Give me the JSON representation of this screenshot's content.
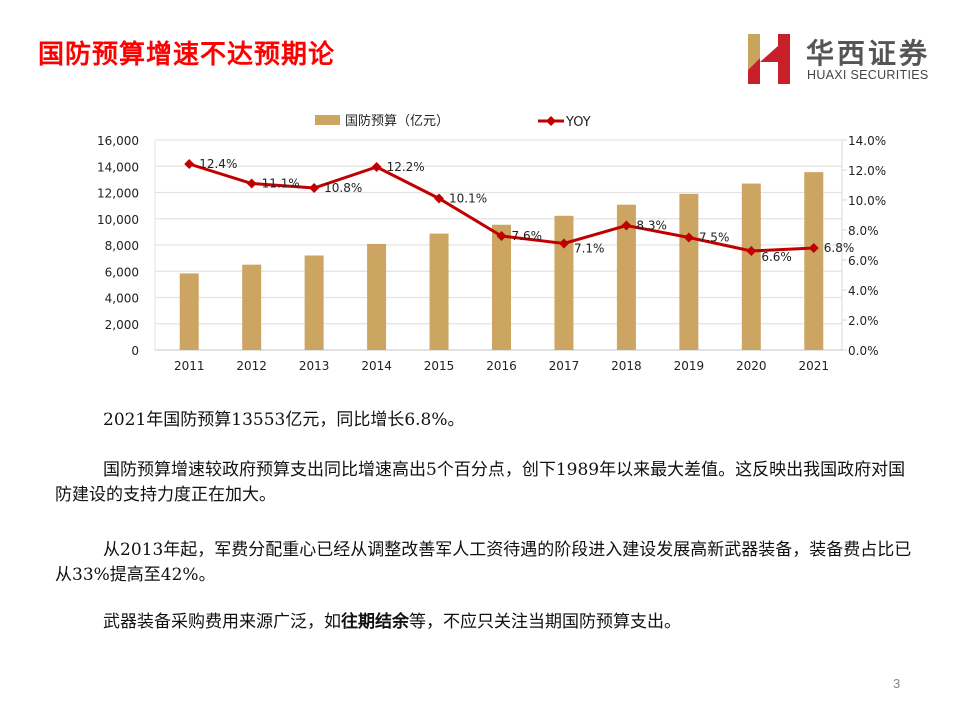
{
  "slide": {
    "title": "国防预算增速不达预期论",
    "page_number": "3"
  },
  "logo": {
    "name_cn": "华西证券",
    "name_en": "HUAXI SECURITIES",
    "colors": {
      "red": "#c8202a",
      "gold": "#c9a45c"
    }
  },
  "chart_data": {
    "type": "bar",
    "title": "",
    "categories": [
      "2011",
      "2012",
      "2013",
      "2014",
      "2015",
      "2016",
      "2017",
      "2018",
      "2019",
      "2020",
      "2021"
    ],
    "series": [
      {
        "name": "国防预算（亿元）",
        "type": "bar",
        "axis": "left",
        "color": "#cda562",
        "values": [
          5836,
          6503,
          7202,
          8082,
          8869,
          9543,
          10226,
          11070,
          11899,
          12680,
          13553
        ]
      },
      {
        "name": "YOY",
        "type": "line",
        "axis": "right",
        "color": "#c00000",
        "values": [
          12.4,
          11.1,
          10.8,
          12.2,
          10.1,
          7.6,
          7.1,
          8.3,
          7.5,
          6.6,
          6.8
        ],
        "labels": [
          "12.4%",
          "11.1%",
          "10.8%",
          "12.2%",
          "10.1%",
          "7.6%",
          "7.1%",
          "8.3%",
          "7.5%",
          "6.6%",
          "6.8%"
        ]
      }
    ],
    "left_axis": {
      "ylim": [
        0,
        16000
      ],
      "ticks": [
        "0",
        "2,000",
        "4,000",
        "6,000",
        "8,000",
        "10,000",
        "12,000",
        "14,000",
        "16,000"
      ]
    },
    "right_axis": {
      "ylim": [
        0,
        14
      ],
      "ticks": [
        "0.0%",
        "2.0%",
        "4.0%",
        "6.0%",
        "8.0%",
        "10.0%",
        "12.0%",
        "14.0%"
      ]
    },
    "legend": {
      "position": "top",
      "entries": [
        "国防预算（亿元）",
        "YOY"
      ]
    },
    "grid": true
  },
  "body": {
    "p1": "2021年国防预算13553亿元，同比增长6.8%。",
    "p2": "国防预算增速较政府预算支出同比增速高出5个百分点，创下1989年以来最大差值。这反映出我国政府对国防建设的支持力度正在加大。",
    "p3": "从2013年起，军费分配重心已经从调整改善军人工资待遇的阶段进入建设发展高新武器装备，装备费占比已从33%提高至42%。",
    "p4_before": "武器装备采购费用来源广泛，如",
    "p4_bold": "往期结余",
    "p4_after": "等，不应只关注当期国防预算支出。"
  }
}
